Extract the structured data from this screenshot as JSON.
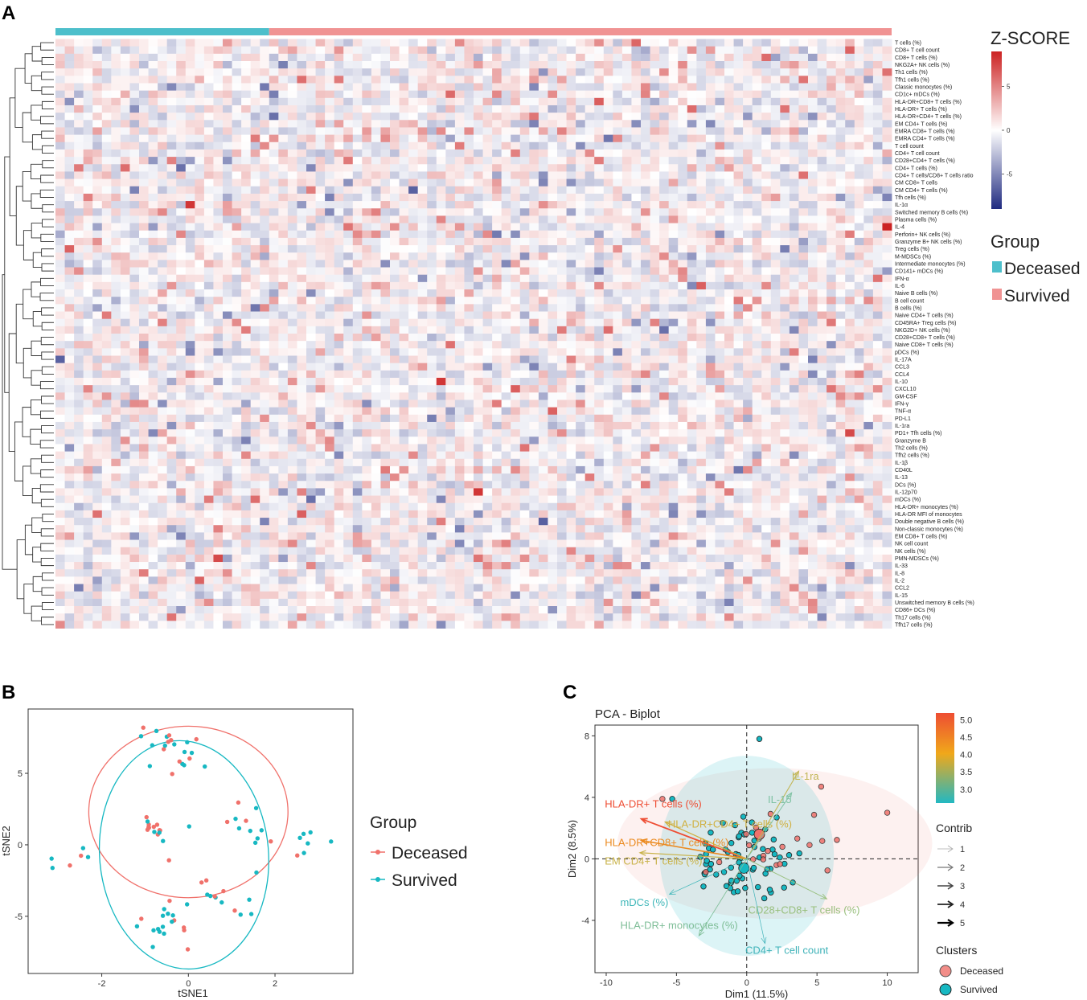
{
  "panels": {
    "a": "A",
    "b": "B",
    "c": "C"
  },
  "heatmap": {
    "legend_title": "Z-SCORE",
    "scale_ticks": [
      "5",
      "0",
      "-5"
    ],
    "scale_values": [
      5,
      0,
      -5
    ],
    "scale_range": [
      -9,
      9
    ],
    "group_title": "Group",
    "groups": [
      {
        "label": "Deceased",
        "color": "#4dbfcb",
        "n": 23
      },
      {
        "label": "Survived",
        "color": "#f09393",
        "n": 67
      }
    ],
    "colors": {
      "low": "#1f2a80",
      "mid": "#ffffff",
      "high": "#cc2222"
    },
    "rows": [
      "T cells (%)",
      "CD8+ T cell count",
      "CD8+ T cells (%)",
      "NKG2A+ NK cells (%)",
      "Th1 cells (%)",
      "Tfh1 cells (%)",
      "Classic monocytes (%)",
      "CD1c+ mDCs (%)",
      "HLA-DR+CD8+ T cells (%)",
      "HLA-DR+ T cells (%)",
      "HLA-DR+CD4+ T cells (%)",
      "EM CD4+ T cells (%)",
      "EMRA CD8+ T cells (%)",
      "EMRA CD4+ T cells (%)",
      "T cell count",
      "CD4+ T cell count",
      "CD28+CD4+ T cells (%)",
      "CD4+ T cells (%)",
      "CD4+ T cells/CD8+ T cells ratio",
      "CM CD8+ T cells",
      "CM CD4+ T cells (%)",
      "Tfh cells (%)",
      "IL-1α",
      "Switched memory B cells (%)",
      "Plasma cells (%)",
      "IL-4",
      "Perforin+ NK cells (%)",
      "Granzyme B+ NK cells (%)",
      "Treg cells (%)",
      "M-MDSCs (%)",
      "Intermediate monocytes (%)",
      "CD141+ mDCs (%)",
      "IFN-α",
      "IL-6",
      "Naive B cells (%)",
      "B cell count",
      "B cells (%)",
      "Naive CD4+ T cells (%)",
      "CD45RA+ Treg cells (%)",
      "NKG2D+ NK cells (%)",
      "CD28+CD8+ T cells (%)",
      "Naive CD8+ T cells (%)",
      "pDCs (%)",
      "IL-17A",
      "CCL3",
      "CCL4",
      "IL-10",
      "CXCL10",
      "GM-CSF",
      "IFN-γ",
      "TNF-α",
      "PD-L1",
      "IL-1ra",
      "PD1+ Tfh cells (%)",
      "Granzyme B",
      "Th2 cells (%)",
      "Tfh2 cells (%)",
      "IL-1β",
      "CD40L",
      "IL-13",
      "DCs (%)",
      "IL-12p70",
      "mDCs (%)",
      "HLA-DR+ monocytes (%)",
      "HLA-DR MFI of monocytes",
      "Double negative B cells (%)",
      "Non-classic monocytes (%)",
      "EM CD8+ T cells (%)",
      "NK cell count",
      "NK cells (%)",
      "PMN-MDSCs (%)",
      "IL-33",
      "IL-8",
      "IL-2",
      "CCL2",
      "IL-15",
      "Unswitched memory B cells (%)",
      "CD86+ DCs (%)",
      "Th17 cells (%)",
      "Tfh17 cells (%)"
    ],
    "hotspots": [
      {
        "row": 22,
        "col": 14,
        "z": 8
      },
      {
        "row": 25,
        "col": 89,
        "z": 9
      },
      {
        "row": 46,
        "col": 41,
        "z": 8
      },
      {
        "row": 61,
        "col": 45,
        "z": 8
      },
      {
        "row": 53,
        "col": 85,
        "z": 7
      },
      {
        "row": 70,
        "col": 17,
        "z": 7
      },
      {
        "row": 26,
        "col": 47,
        "z": -5
      },
      {
        "row": 6,
        "col": 22,
        "z": -5
      },
      {
        "row": 33,
        "col": 69,
        "z": 6
      },
      {
        "row": 64,
        "col": 26,
        "z": 6
      },
      {
        "row": 47,
        "col": 49,
        "z": 6
      },
      {
        "row": 10,
        "col": 51,
        "z": 5
      }
    ]
  },
  "tsne": {
    "xlabel": "tSNE1",
    "ylabel": "tSNE2",
    "xticks": [
      -2,
      0,
      2
    ],
    "yticks": [
      -5,
      0,
      5
    ],
    "xlim": [
      -3.7,
      3.8
    ],
    "ylim": [
      -9.0,
      9.5
    ],
    "legend_title": "Group",
    "legend": [
      {
        "label": "Deceased",
        "color": "#f0716b"
      },
      {
        "label": "Survived",
        "color": "#17b8c2"
      }
    ],
    "ellipses": [
      {
        "group": "Deceased",
        "cx": 0.0,
        "cy": 2.3,
        "rx": 2.3,
        "ry": 6.0,
        "angle": 0
      },
      {
        "group": "Survived",
        "cx": -0.1,
        "cy": -0.7,
        "rx": 1.95,
        "ry": 8.0,
        "angle": -5
      }
    ]
  },
  "pca": {
    "title": "PCA - Biplot",
    "xlabel": "Dim1 (11.5%)",
    "ylabel": "Dim2 (8.5%)",
    "xticks": [
      -10,
      -5,
      0,
      5,
      10
    ],
    "yticks": [
      -4,
      0,
      4,
      8
    ],
    "xlim": [
      -10.8,
      12.2
    ],
    "ylim": [
      -7.4,
      8.7
    ],
    "colorbar_ticks": [
      "5.0",
      "4.5",
      "4.0",
      "3.5",
      "3.0"
    ],
    "colorbar_values": [
      5.0,
      4.5,
      4.0,
      3.5,
      3.0
    ],
    "colorbar_range": [
      2.6,
      5.2
    ],
    "contrib_title": "Contrib",
    "contrib_ticks": [
      "1",
      "2",
      "3",
      "4",
      "5"
    ],
    "clusters_title": "Clusters",
    "clusters": [
      {
        "label": "Deceased",
        "color": "#f0716b"
      },
      {
        "label": "Survived",
        "color": "#17b8c2"
      }
    ],
    "centroids": [
      {
        "group": "Deceased",
        "x": 0.9,
        "y": 1.6
      },
      {
        "group": "Survived",
        "x": -0.2,
        "y": -0.6
      }
    ],
    "ellipses": [
      {
        "group": "Deceased",
        "cx": 2.0,
        "cy": 1.0,
        "rx": 11.2,
        "ry": 4.9
      },
      {
        "group": "Survived",
        "cx": 0.0,
        "cy": 0.2,
        "rx": 6.2,
        "ry": 6.5
      }
    ],
    "arrows": [
      {
        "label": "HLA-DR+ T cells (%)",
        "x": -7.5,
        "y": 2.6,
        "contrib": 5.0,
        "color": "#ee4d33",
        "lx": -10.1,
        "ly": 3.6
      },
      {
        "label": "HLA-DR+CD8+ T cells (%)",
        "x": -7.5,
        "y": 1.2,
        "contrib": 4.6,
        "color": "#eb8a1f",
        "lx": -10.1,
        "ly": 1.1
      },
      {
        "label": "EM CD4+ T cells (%)",
        "x": -7.6,
        "y": 0.4,
        "contrib": 3.8,
        "color": "#c9b34a",
        "lx": -10.1,
        "ly": -0.1
      },
      {
        "label": "HLA-DR+CD4+ T cells (%)",
        "x": -5.8,
        "y": 2.4,
        "contrib": 3.9,
        "color": "#d0b040",
        "lx": -5.6,
        "ly": 2.3
      },
      {
        "label": "IL-1ra",
        "x": 3.7,
        "y": 5.7,
        "contrib": 3.6,
        "color": "#c2b656",
        "lx": 3.2,
        "ly": 5.4
      },
      {
        "label": "IL-15",
        "x": 3.2,
        "y": 4.3,
        "contrib": 3.3,
        "color": "#7fc2a3",
        "lx": 1.5,
        "ly": 3.9
      },
      {
        "label": "CD28+CD8+ T cells (%)",
        "x": 5.7,
        "y": -2.6,
        "contrib": 3.2,
        "color": "#98bf7c",
        "lx": 0.1,
        "ly": -3.3
      },
      {
        "label": "mDCs (%)",
        "x": -5.5,
        "y": -2.3,
        "contrib": 2.9,
        "color": "#3fb7b9",
        "lx": -9.0,
        "ly": -2.8
      },
      {
        "label": "HLA-DR+ monocytes (%)",
        "x": -3.4,
        "y": -5.0,
        "contrib": 3.1,
        "color": "#7fbe98",
        "lx": -9.0,
        "ly": -4.3
      },
      {
        "label": "CD4+ T cell count",
        "x": 1.3,
        "y": -5.5,
        "contrib": 2.8,
        "color": "#41b3b9",
        "lx": -0.1,
        "ly": -5.9
      }
    ]
  }
}
